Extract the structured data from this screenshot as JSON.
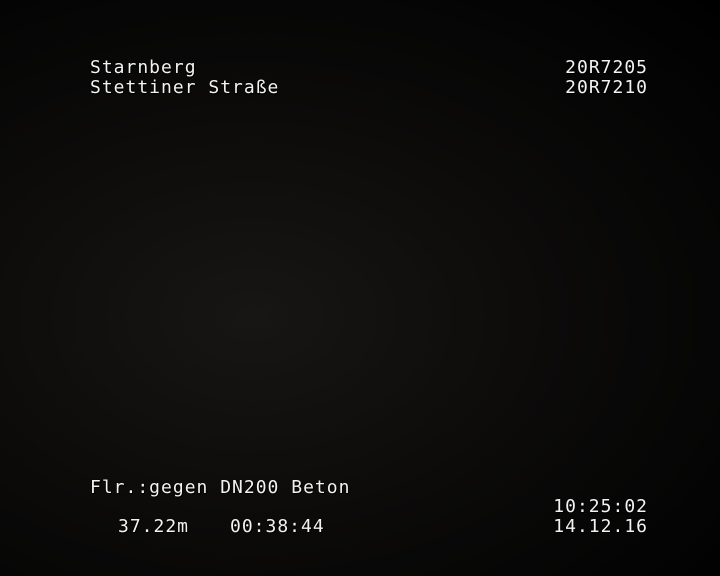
{
  "overlay": {
    "location": "Starnberg",
    "street": "Stettiner Straße",
    "manhole_start": "20R7205",
    "manhole_end": "20R7210",
    "observation": "Flr.:gegen DN200 Beton",
    "distance": "37.22m",
    "elapsed": "00:38:44",
    "time": "10:25:02",
    "date": "14.12.16"
  }
}
